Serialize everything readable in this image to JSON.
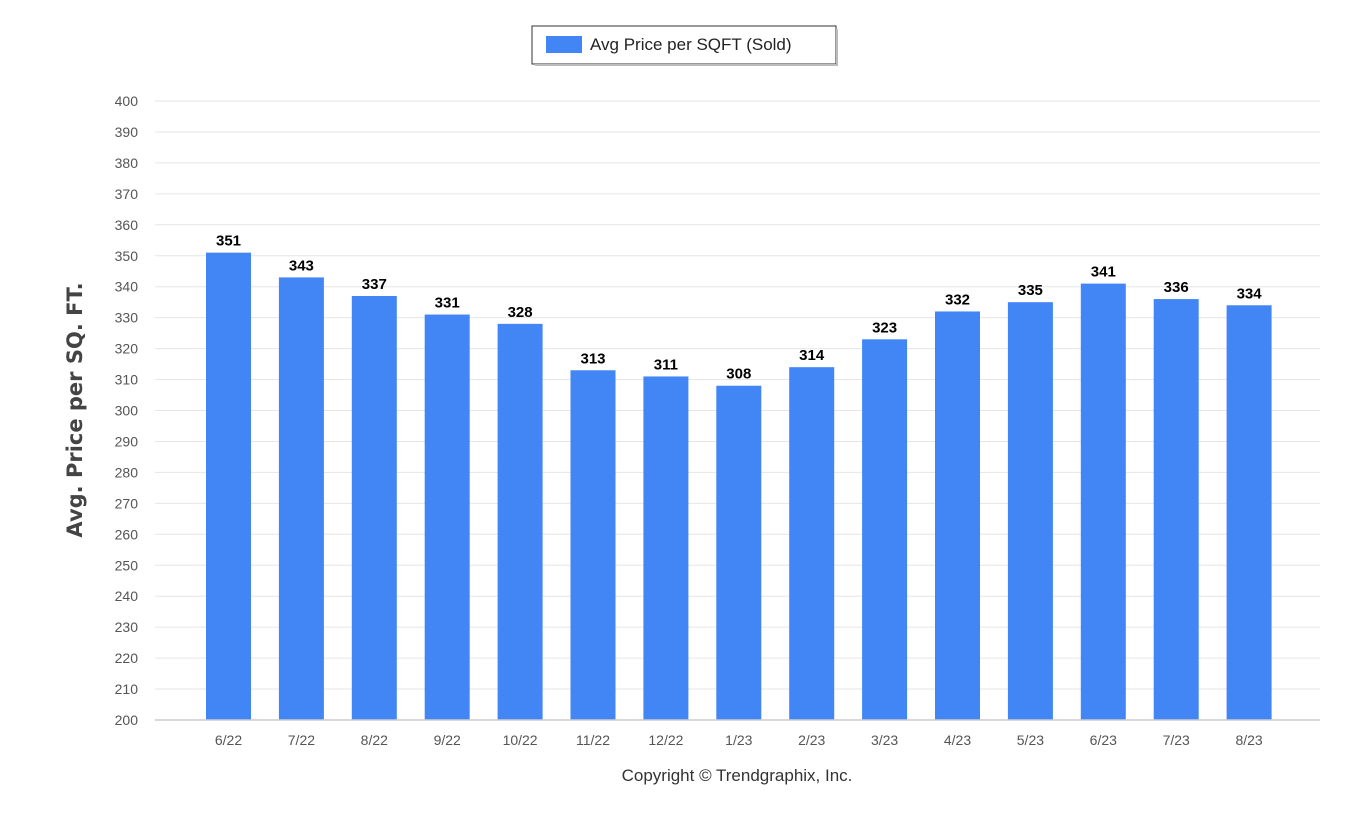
{
  "chart_data": {
    "type": "bar",
    "categories": [
      "6/22",
      "7/22",
      "8/22",
      "9/22",
      "10/22",
      "11/22",
      "12/22",
      "1/23",
      "2/23",
      "3/23",
      "4/23",
      "5/23",
      "6/23",
      "7/23",
      "8/23"
    ],
    "series": [
      {
        "name": "Avg Price per SQFT (Sold)",
        "values": [
          351,
          343,
          337,
          331,
          328,
          313,
          311,
          308,
          314,
          323,
          332,
          335,
          341,
          336,
          334
        ],
        "color": "#4285f4"
      }
    ],
    "ylabel": "Avg. Price per SQ. FT.",
    "xlabel": "",
    "ylim": [
      200,
      400
    ],
    "y_tick_step": 10,
    "grid": true,
    "legend_position": "top-center",
    "data_labels": true
  },
  "footer": {
    "copyright": "Copyright © Trendgraphix, Inc."
  },
  "colors": {
    "bar": "#4285f4",
    "grid": "#e6e6e6",
    "axis": "#cccccc"
  }
}
